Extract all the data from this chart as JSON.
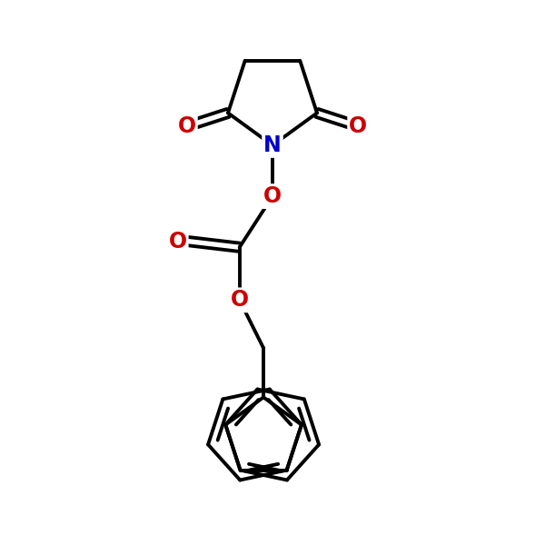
{
  "background_color": "#ffffff",
  "line_color": "#000000",
  "line_width": 2.8,
  "N_color": "#0000cc",
  "O_color": "#cc0000",
  "font_size_atom": 17,
  "xlim": [
    0,
    10
  ],
  "ylim": [
    0,
    10
  ]
}
